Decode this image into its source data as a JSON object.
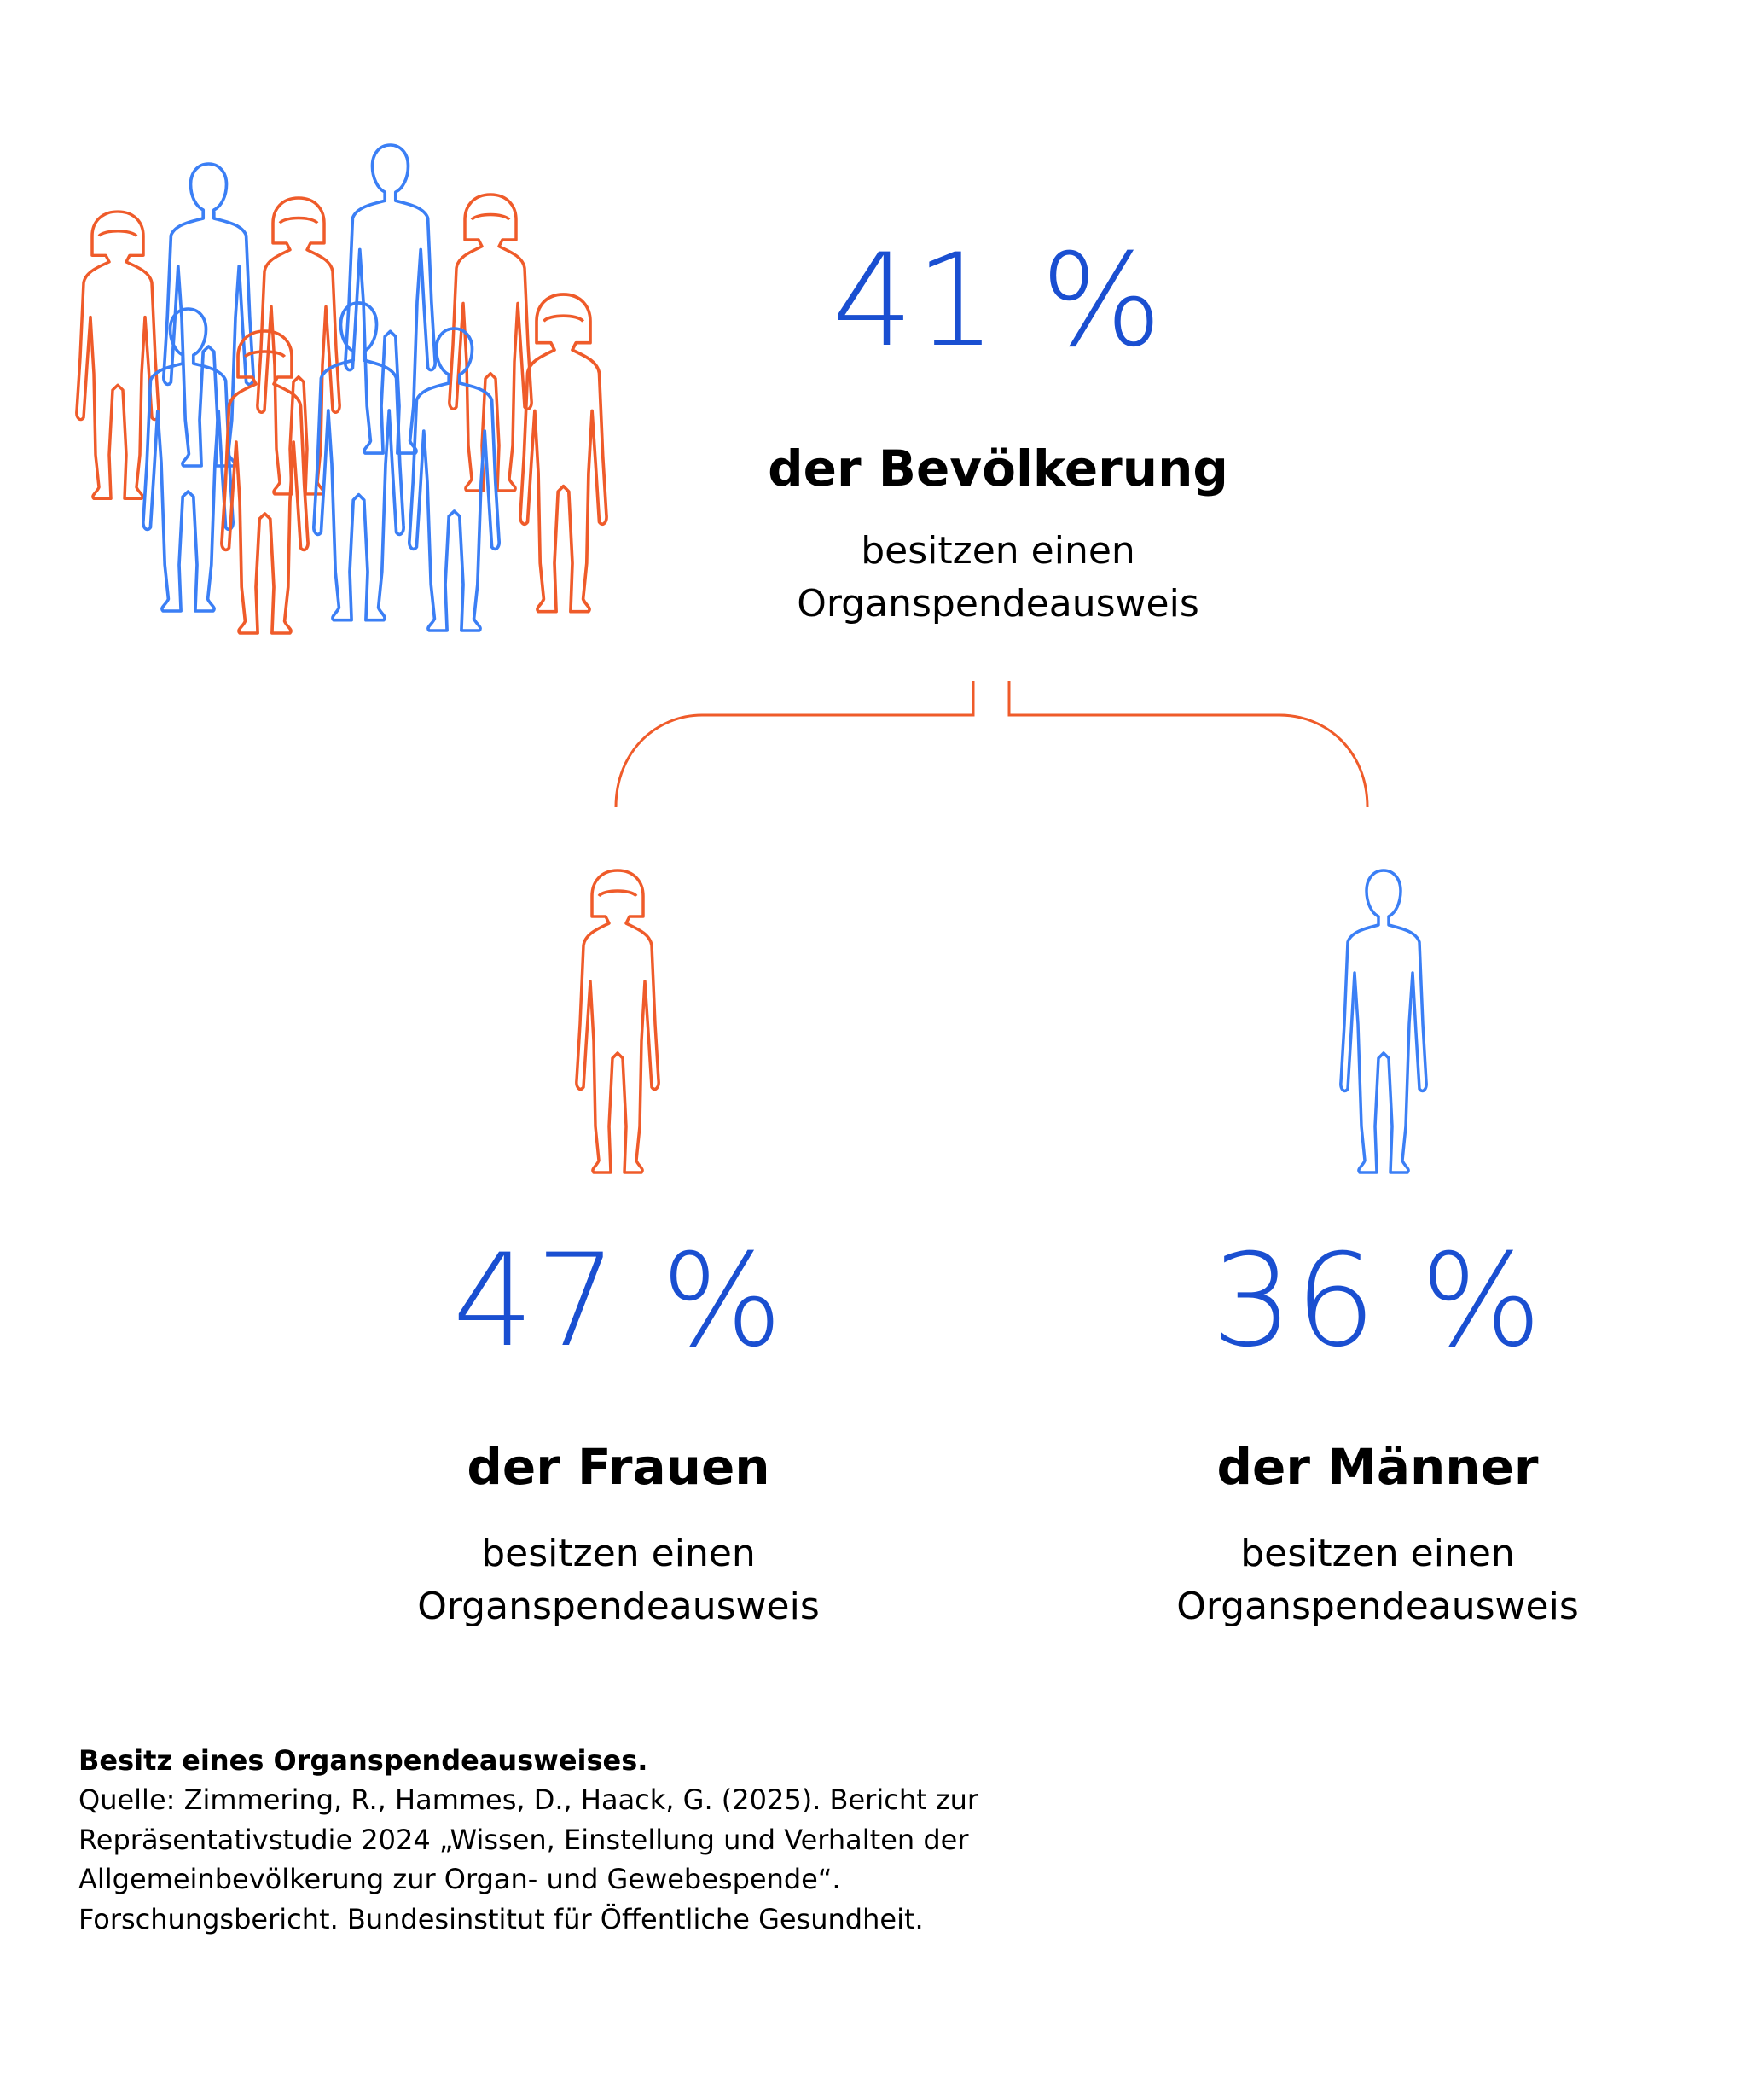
{
  "colors": {
    "accent_blue": "#1a4fd1",
    "figure_blue": "#3b7ff5",
    "figure_orange": "#ef5b2a",
    "text": "#000000"
  },
  "overall": {
    "percent": "41 %",
    "group": "der Bevölkerung",
    "desc_line1": "besitzen einen",
    "desc_line2": "Organspendeausweis",
    "icon": "crowd-icon"
  },
  "women": {
    "percent": "47 %",
    "group": "der Frauen",
    "desc_line1": "besitzen einen",
    "desc_line2": "Organspendeausweis",
    "icon": "woman-figure-icon"
  },
  "men": {
    "percent": "36 %",
    "group": "der Männer",
    "desc_line1": "besitzen einen",
    "desc_line2": "Organspendeausweis",
    "icon": "man-figure-icon"
  },
  "source": {
    "heading": "Besitz eines Organspendeausweises.",
    "line1": "Quelle: Zimmering, R., Hammes, D., Haack, G. (2025). Bericht zur",
    "line2": "Repräsentativstudie 2024 „Wissen, Einstellung und Verhalten der",
    "line3": "Allgemeinbevölkerung zur Organ- und Gewebespende“.",
    "line4": "Forschungsbericht. Bundesinstitut für Öffentliche Gesundheit."
  }
}
